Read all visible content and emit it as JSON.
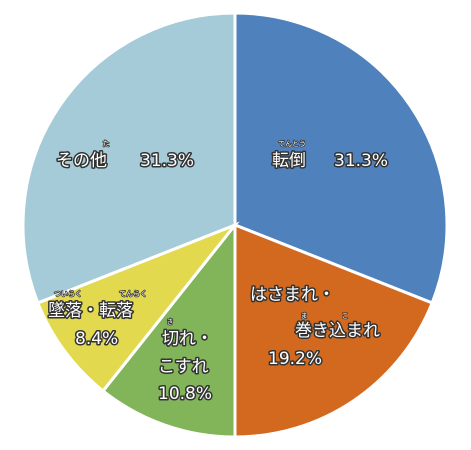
{
  "chart_data": {
    "type": "pie",
    "start": "12 o'clock",
    "direction": "clockwise",
    "slices": [
      {
        "label_lines": [
          "転倒",
          "31.3%"
        ],
        "ruby": [
          "てんとう"
        ],
        "value": 31.3,
        "color": "#4f81bd"
      },
      {
        "label_lines": [
          "はさまれ・",
          "巻き込まれ",
          "19.2%"
        ],
        "ruby": [
          "ま",
          "こ"
        ],
        "value": 19.2,
        "color": "#d2691e"
      },
      {
        "label_lines": [
          "切れ・",
          "こすれ",
          "10.8%"
        ],
        "ruby": [
          "き"
        ],
        "value": 10.8,
        "color": "#82b45a"
      },
      {
        "label_lines": [
          "墜落・転落",
          "8.4%"
        ],
        "ruby": [
          "ついらく",
          "てんらく"
        ],
        "value": 8.4,
        "color": "#e2d94e"
      },
      {
        "label_lines": [
          "その他",
          "31.3%"
        ],
        "ruby": [
          "た"
        ],
        "value": 31.3,
        "color": "#a5cbd9"
      }
    ]
  }
}
